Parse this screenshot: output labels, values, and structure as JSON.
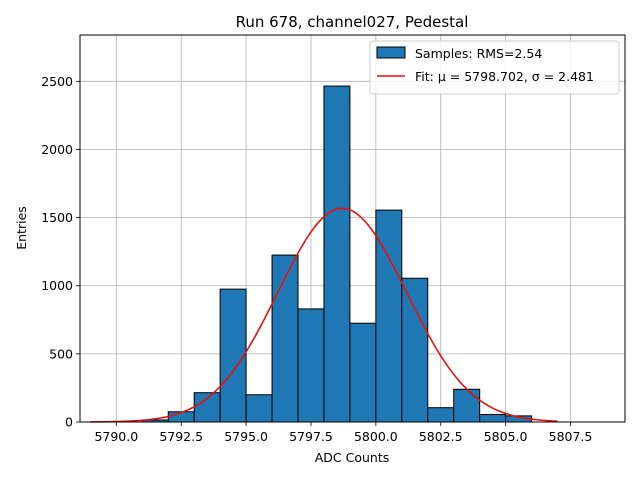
{
  "chart_data": {
    "type": "bar",
    "title": "Run 678, channel027, Pedestal",
    "xlabel": "ADC Counts",
    "ylabel": "Entries",
    "xlim": [
      5788.6,
      5809.6
    ],
    "ylim": [
      0,
      2840
    ],
    "xticks": [
      5790.0,
      5792.5,
      5795.0,
      5797.5,
      5800.0,
      5802.5,
      5805.0,
      5807.5
    ],
    "xtick_labels": [
      "5790.0",
      "5792.5",
      "5795.0",
      "5797.5",
      "5800.0",
      "5802.5",
      "5805.0",
      "5807.5"
    ],
    "yticks": [
      0,
      500,
      1000,
      1500,
      2000,
      2500
    ],
    "ytick_labels": [
      "0",
      "500",
      "1000",
      "1500",
      "2000",
      "2500"
    ],
    "grid": true,
    "legend_position": "top-right",
    "bin_width": 1.0,
    "bin_edges_start": 5791.0,
    "bins": [
      {
        "left": 5791,
        "count": 15
      },
      {
        "left": 5792,
        "count": 75
      },
      {
        "left": 5793,
        "count": 215
      },
      {
        "left": 5794,
        "count": 975
      },
      {
        "left": 5795,
        "count": 200
      },
      {
        "left": 5796,
        "count": 1225
      },
      {
        "left": 5797,
        "count": 830
      },
      {
        "left": 5798,
        "count": 2465
      },
      {
        "left": 5799,
        "count": 725
      },
      {
        "left": 5800,
        "count": 1555
      },
      {
        "left": 5801,
        "count": 1055
      },
      {
        "left": 5802,
        "count": 105
      },
      {
        "left": 5803,
        "count": 240
      },
      {
        "left": 5804,
        "count": 55
      },
      {
        "left": 5805,
        "count": 45
      }
    ],
    "histogram_color": "#1f77b4",
    "fit": {
      "mu": 5798.702,
      "sigma": 2.481,
      "amplitude": 1568,
      "x_range": [
        5789.0,
        5807.0
      ],
      "color": "#e8100c"
    },
    "legend": [
      {
        "label": "Samples: RMS=2.54",
        "kind": "patch",
        "color": "#1f77b4"
      },
      {
        "label": "Fit: μ = 5798.702, σ = 2.481",
        "kind": "line",
        "color": "#e8100c"
      }
    ]
  }
}
